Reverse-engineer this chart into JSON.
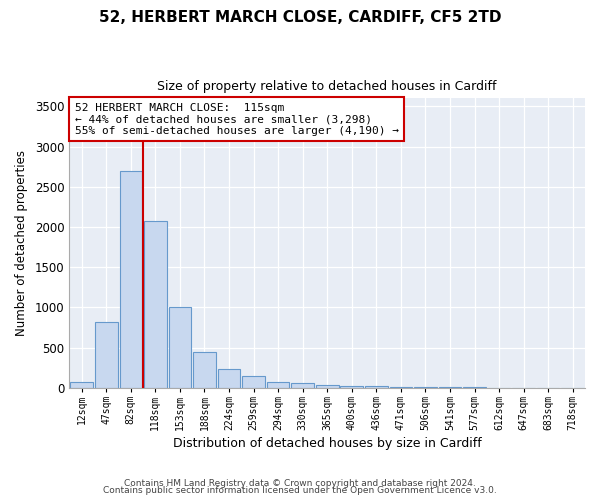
{
  "title1": "52, HERBERT MARCH CLOSE, CARDIFF, CF5 2TD",
  "title2": "Size of property relative to detached houses in Cardiff",
  "xlabel": "Distribution of detached houses by size in Cardiff",
  "ylabel": "Number of detached properties",
  "categories": [
    "12sqm",
    "47sqm",
    "82sqm",
    "118sqm",
    "153sqm",
    "188sqm",
    "224sqm",
    "259sqm",
    "294sqm",
    "330sqm",
    "365sqm",
    "400sqm",
    "436sqm",
    "471sqm",
    "506sqm",
    "541sqm",
    "577sqm",
    "612sqm",
    "647sqm",
    "683sqm",
    "718sqm"
  ],
  "values": [
    75,
    820,
    2700,
    2080,
    1000,
    450,
    230,
    150,
    75,
    55,
    35,
    25,
    20,
    15,
    10,
    7,
    5,
    4,
    3,
    2,
    1
  ],
  "bar_color": "#c8d8ef",
  "bar_edge_color": "#6699cc",
  "vline_color": "#cc0000",
  "vline_pos": 2.5,
  "annotation_text": "52 HERBERT MARCH CLOSE:  115sqm\n← 44% of detached houses are smaller (3,298)\n55% of semi-detached houses are larger (4,190) →",
  "annotation_box_color": "#ffffff",
  "annotation_box_edge": "#cc0000",
  "ylim": [
    0,
    3600
  ],
  "yticks": [
    0,
    500,
    1000,
    1500,
    2000,
    2500,
    3000,
    3500
  ],
  "footnote1": "Contains HM Land Registry data © Crown copyright and database right 2024.",
  "footnote2": "Contains public sector information licensed under the Open Government Licence v3.0.",
  "bg_color": "#ffffff",
  "plot_bg": "#e8edf5",
  "grid_color": "#ffffff"
}
